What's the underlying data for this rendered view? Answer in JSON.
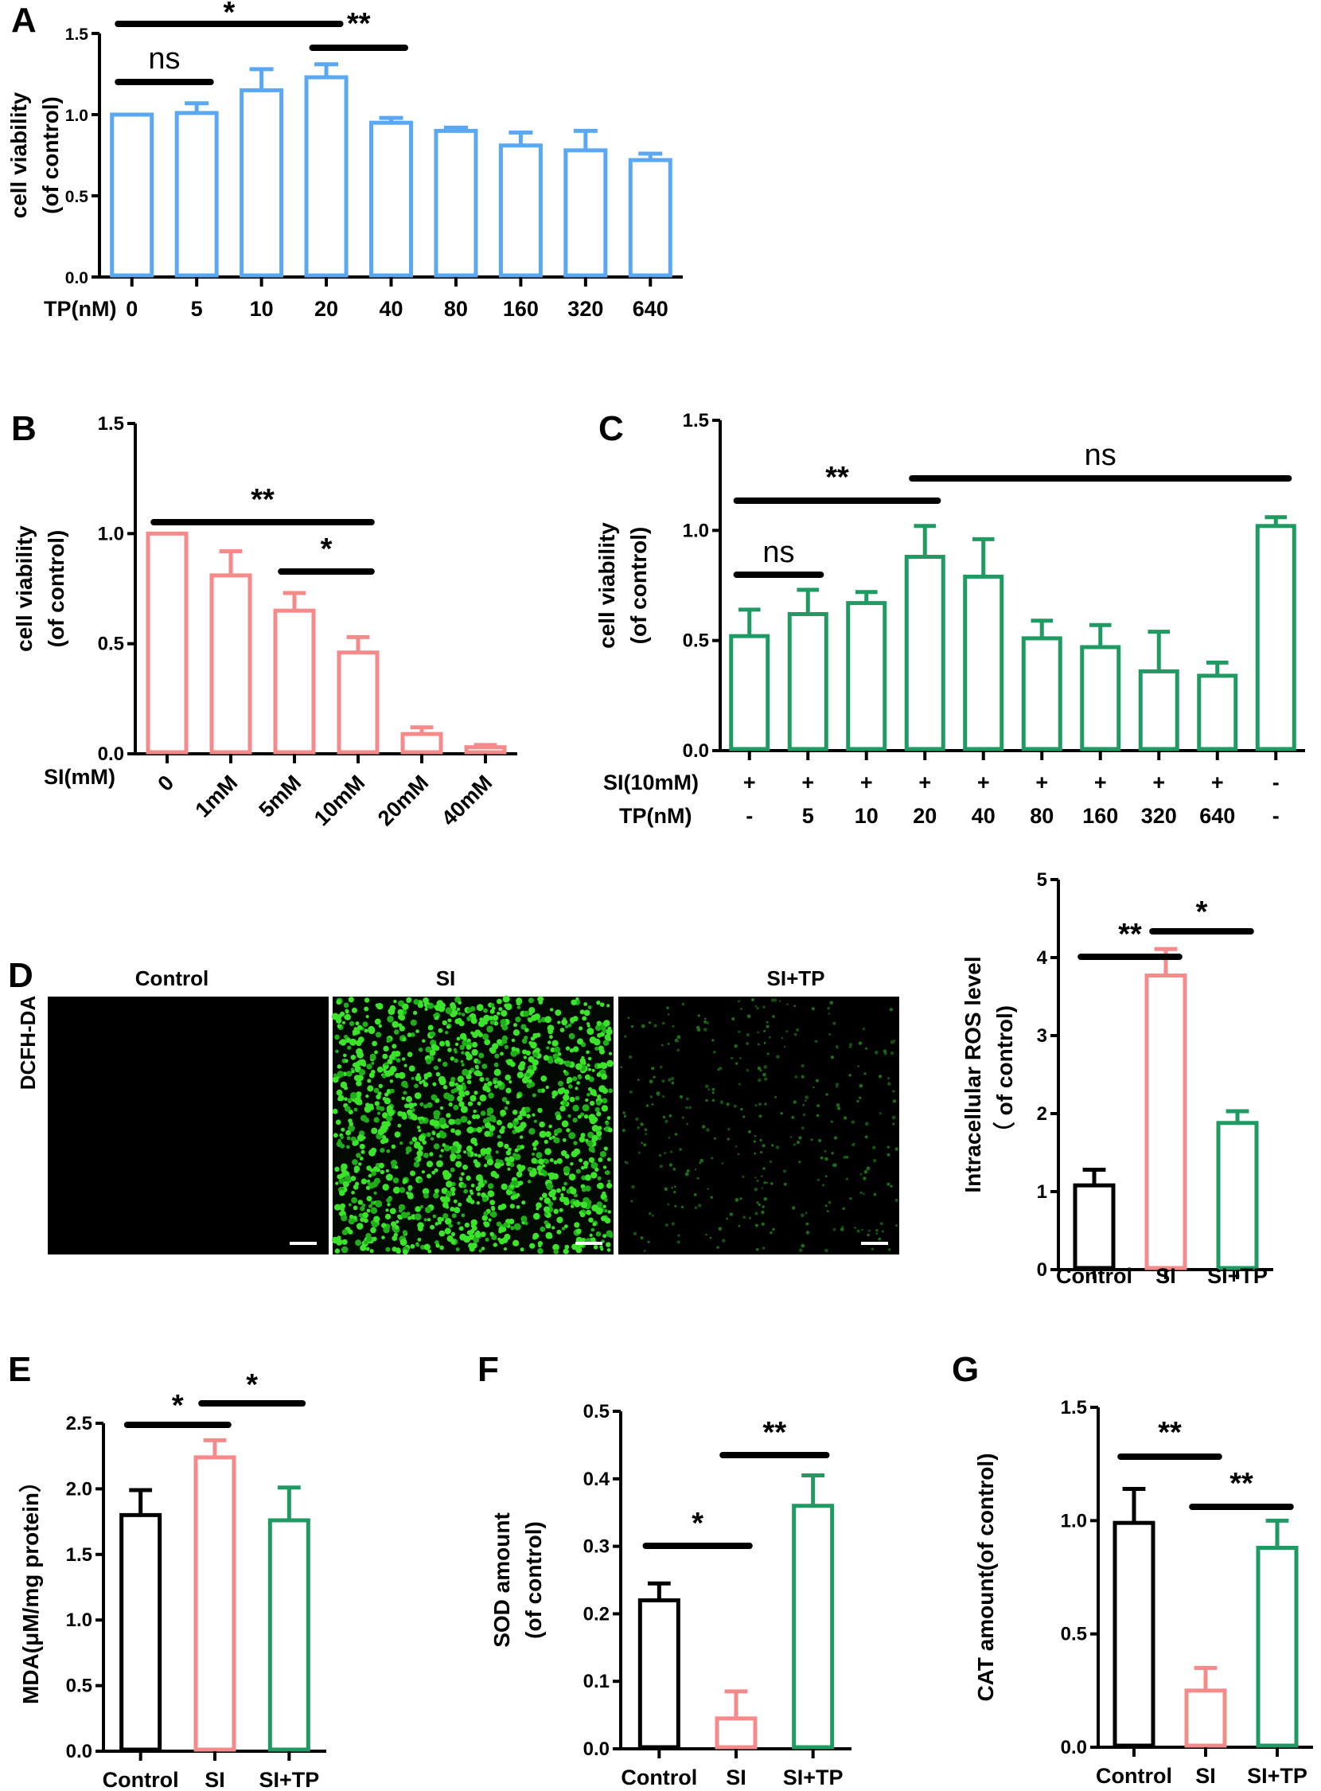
{
  "chart_data": [
    {
      "id": "A",
      "type": "bar",
      "panel_label": "A",
      "ylabel": [
        "cell viability",
        "(of control)"
      ],
      "row_labels": [
        "TP(nM)"
      ],
      "rows": [
        [
          "0",
          "5",
          "10",
          "20",
          "40",
          "80",
          "160",
          "320",
          "640"
        ]
      ],
      "values": [
        1.0,
        1.01,
        1.15,
        1.23,
        0.95,
        0.9,
        0.81,
        0.78,
        0.72
      ],
      "errors": [
        0.0,
        0.06,
        0.13,
        0.08,
        0.03,
        0.02,
        0.08,
        0.12,
        0.04
      ],
      "colors": [
        "#5AA7F2",
        "#5AA7F2",
        "#5AA7F2",
        "#5AA7F2",
        "#5AA7F2",
        "#5AA7F2",
        "#5AA7F2",
        "#5AA7F2",
        "#5AA7F2"
      ],
      "ylim": [
        0,
        1.5
      ],
      "yticks": [
        "0.0",
        "0.5",
        "1.0",
        "1.5"
      ],
      "significance": [
        {
          "from": 0,
          "to": 1,
          "label": "ns"
        },
        {
          "from": 0,
          "to": 3,
          "label": "*"
        },
        {
          "from": 3,
          "to": 4,
          "label": "**"
        }
      ]
    },
    {
      "id": "B",
      "type": "bar",
      "panel_label": "B",
      "ylabel": [
        "cell viability",
        "(of control)"
      ],
      "row_labels": [
        "SI(mM)"
      ],
      "rows": [
        [
          "0",
          "1mM",
          "5mM",
          "10mM",
          "20mM",
          "40mM"
        ]
      ],
      "values": [
        1.0,
        0.81,
        0.65,
        0.46,
        0.09,
        0.03
      ],
      "errors": [
        0.0,
        0.11,
        0.08,
        0.07,
        0.03,
        0.01
      ],
      "colors": [
        "#F58A8A",
        "#F58A8A",
        "#F58A8A",
        "#F58A8A",
        "#F58A8A",
        "#F58A8A"
      ],
      "ylim": [
        0,
        1.5
      ],
      "yticks": [
        "0.0",
        "0.5",
        "1.0",
        "1.5"
      ],
      "significance": [
        {
          "from": 0,
          "to": 3,
          "label": "**"
        },
        {
          "from": 2,
          "to": 3,
          "label": "*"
        }
      ]
    },
    {
      "id": "C",
      "type": "bar",
      "panel_label": "C",
      "ylabel": [
        "cell viability",
        "(of control)"
      ],
      "row_labels": [
        "SI(10mM)",
        "TP(nM)"
      ],
      "rows": [
        [
          "+",
          "+",
          "+",
          "+",
          "+",
          "+",
          "+",
          "+",
          "+",
          "-"
        ],
        [
          "-",
          "5",
          "10",
          "20",
          "40",
          "80",
          "160",
          "320",
          "640",
          "-"
        ]
      ],
      "values": [
        0.52,
        0.62,
        0.67,
        0.88,
        0.79,
        0.51,
        0.47,
        0.36,
        0.34,
        1.02
      ],
      "errors": [
        0.12,
        0.11,
        0.05,
        0.14,
        0.17,
        0.08,
        0.1,
        0.18,
        0.06,
        0.04
      ],
      "colors": [
        "#1E9A62",
        "#1E9A62",
        "#1E9A62",
        "#1E9A62",
        "#1E9A62",
        "#1E9A62",
        "#1E9A62",
        "#1E9A62",
        "#1E9A62",
        "#1E9A62"
      ],
      "ylim": [
        0,
        1.5
      ],
      "yticks": [
        "0.0",
        "0.5",
        "1.0",
        "1.5"
      ],
      "significance": [
        {
          "from": 0,
          "to": 3,
          "label": "**"
        },
        {
          "from": 3,
          "to": 9,
          "label": "ns"
        },
        {
          "from": 0,
          "to": 1,
          "label": "ns"
        }
      ]
    },
    {
      "id": "D-bar",
      "type": "bar",
      "panel_label": "",
      "ylabel": [
        "Intracellular ROS level",
        "（ of control)"
      ],
      "row_labels": [],
      "rows": [
        [
          "Control",
          "SI",
          "SI+TP"
        ]
      ],
      "values": [
        1.08,
        3.77,
        1.88
      ],
      "errors": [
        0.2,
        0.34,
        0.15
      ],
      "colors": [
        "#000000",
        "#F58A8A",
        "#1E9A62"
      ],
      "ylim": [
        0,
        5
      ],
      "yticks": [
        "0",
        "1",
        "2",
        "3",
        "4",
        "5"
      ],
      "significance": [
        {
          "from": 0,
          "to": 1,
          "label": "**"
        },
        {
          "from": 1,
          "to": 2,
          "label": "*"
        }
      ]
    },
    {
      "id": "E",
      "type": "bar",
      "panel_label": "E",
      "ylabel": [
        "MDA(μM/mg protein）"
      ],
      "row_labels": [],
      "rows": [
        [
          "Control",
          "SI",
          "SI+TP"
        ]
      ],
      "values": [
        1.8,
        2.24,
        1.76
      ],
      "errors": [
        0.19,
        0.13,
        0.25
      ],
      "colors": [
        "#000000",
        "#F58A8A",
        "#1E9A62"
      ],
      "ylim": [
        0,
        2.5
      ],
      "yticks": [
        "0.0",
        "0.5",
        "1.0",
        "1.5",
        "2.0",
        "2.5"
      ],
      "significance": [
        {
          "from": 0,
          "to": 1,
          "label": "*"
        },
        {
          "from": 1,
          "to": 2,
          "label": "*"
        }
      ]
    },
    {
      "id": "F",
      "type": "bar",
      "panel_label": "F",
      "ylabel": [
        "SOD amount",
        "(of control)"
      ],
      "row_labels": [],
      "rows": [
        [
          "Control",
          "SI",
          "SI+TP"
        ]
      ],
      "values": [
        0.22,
        0.045,
        0.36
      ],
      "errors": [
        0.025,
        0.04,
        0.045
      ],
      "colors": [
        "#000000",
        "#F58A8A",
        "#1E9A62"
      ],
      "ylim": [
        0,
        0.5
      ],
      "yticks": [
        "0.0",
        "0.1",
        "0.2",
        "0.3",
        "0.4",
        "0.5"
      ],
      "significance": [
        {
          "from": 0,
          "to": 1,
          "label": "*"
        },
        {
          "from": 1,
          "to": 2,
          "label": "**"
        }
      ]
    },
    {
      "id": "G",
      "type": "bar",
      "panel_label": "G",
      "ylabel": [
        "CAT amount(of control)"
      ],
      "row_labels": [],
      "rows": [
        [
          "Control",
          "SI",
          "SI+TP"
        ]
      ],
      "values": [
        0.99,
        0.25,
        0.88
      ],
      "errors": [
        0.15,
        0.1,
        0.12
      ],
      "colors": [
        "#000000",
        "#F58A8A",
        "#1E9A62"
      ],
      "ylim": [
        0,
        1.5
      ],
      "yticks": [
        "0.0",
        "0.5",
        "1.0",
        "1.5"
      ],
      "significance": [
        {
          "from": 0,
          "to": 1,
          "label": "**"
        },
        {
          "from": 1,
          "to": 2,
          "label": "**"
        }
      ]
    }
  ],
  "micrographs": {
    "panel_label": "D",
    "stain_label": "DCFH-DA",
    "images": [
      {
        "title": "Control",
        "intensity": 0.0
      },
      {
        "title": "SI",
        "intensity": 1.0
      },
      {
        "title": "SI+TP",
        "intensity": 0.25
      }
    ]
  }
}
